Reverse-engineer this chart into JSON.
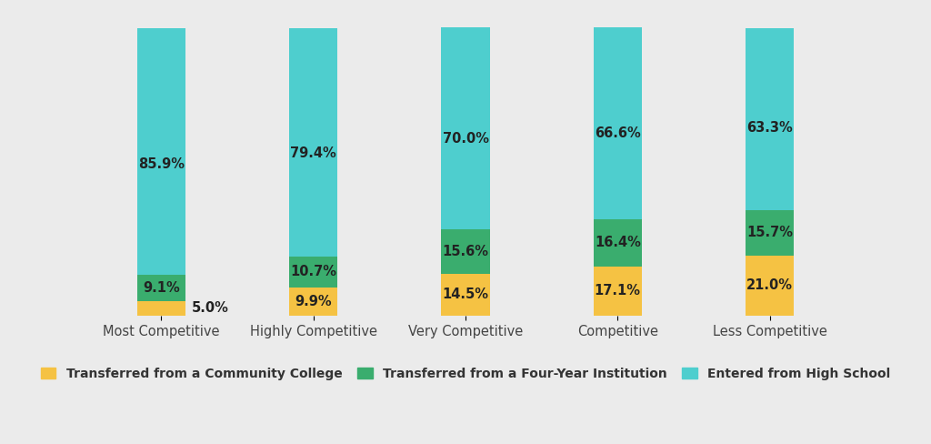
{
  "categories": [
    "Most Competitive",
    "Highly Competitive",
    "Very Competitive",
    "Competitive",
    "Less Competitive"
  ],
  "community_college": [
    5.0,
    9.9,
    14.5,
    17.1,
    21.0
  ],
  "four_year": [
    9.1,
    10.7,
    15.6,
    16.4,
    15.7
  ],
  "high_school": [
    85.9,
    79.4,
    70.0,
    66.6,
    63.3
  ],
  "color_community": "#F5C243",
  "color_four_year": "#3AAD6E",
  "color_high_school": "#4ECECE",
  "background_color": "#EBEBEB",
  "bar_width": 0.32,
  "label_community": "Transferred from a Community College",
  "label_four_year": "Transferred from a Four-Year Institution",
  "label_high_school": "Entered from High School",
  "tick_fontsize": 10.5,
  "legend_fontsize": 10,
  "value_fontsize": 10.5,
  "ylim_max": 105
}
